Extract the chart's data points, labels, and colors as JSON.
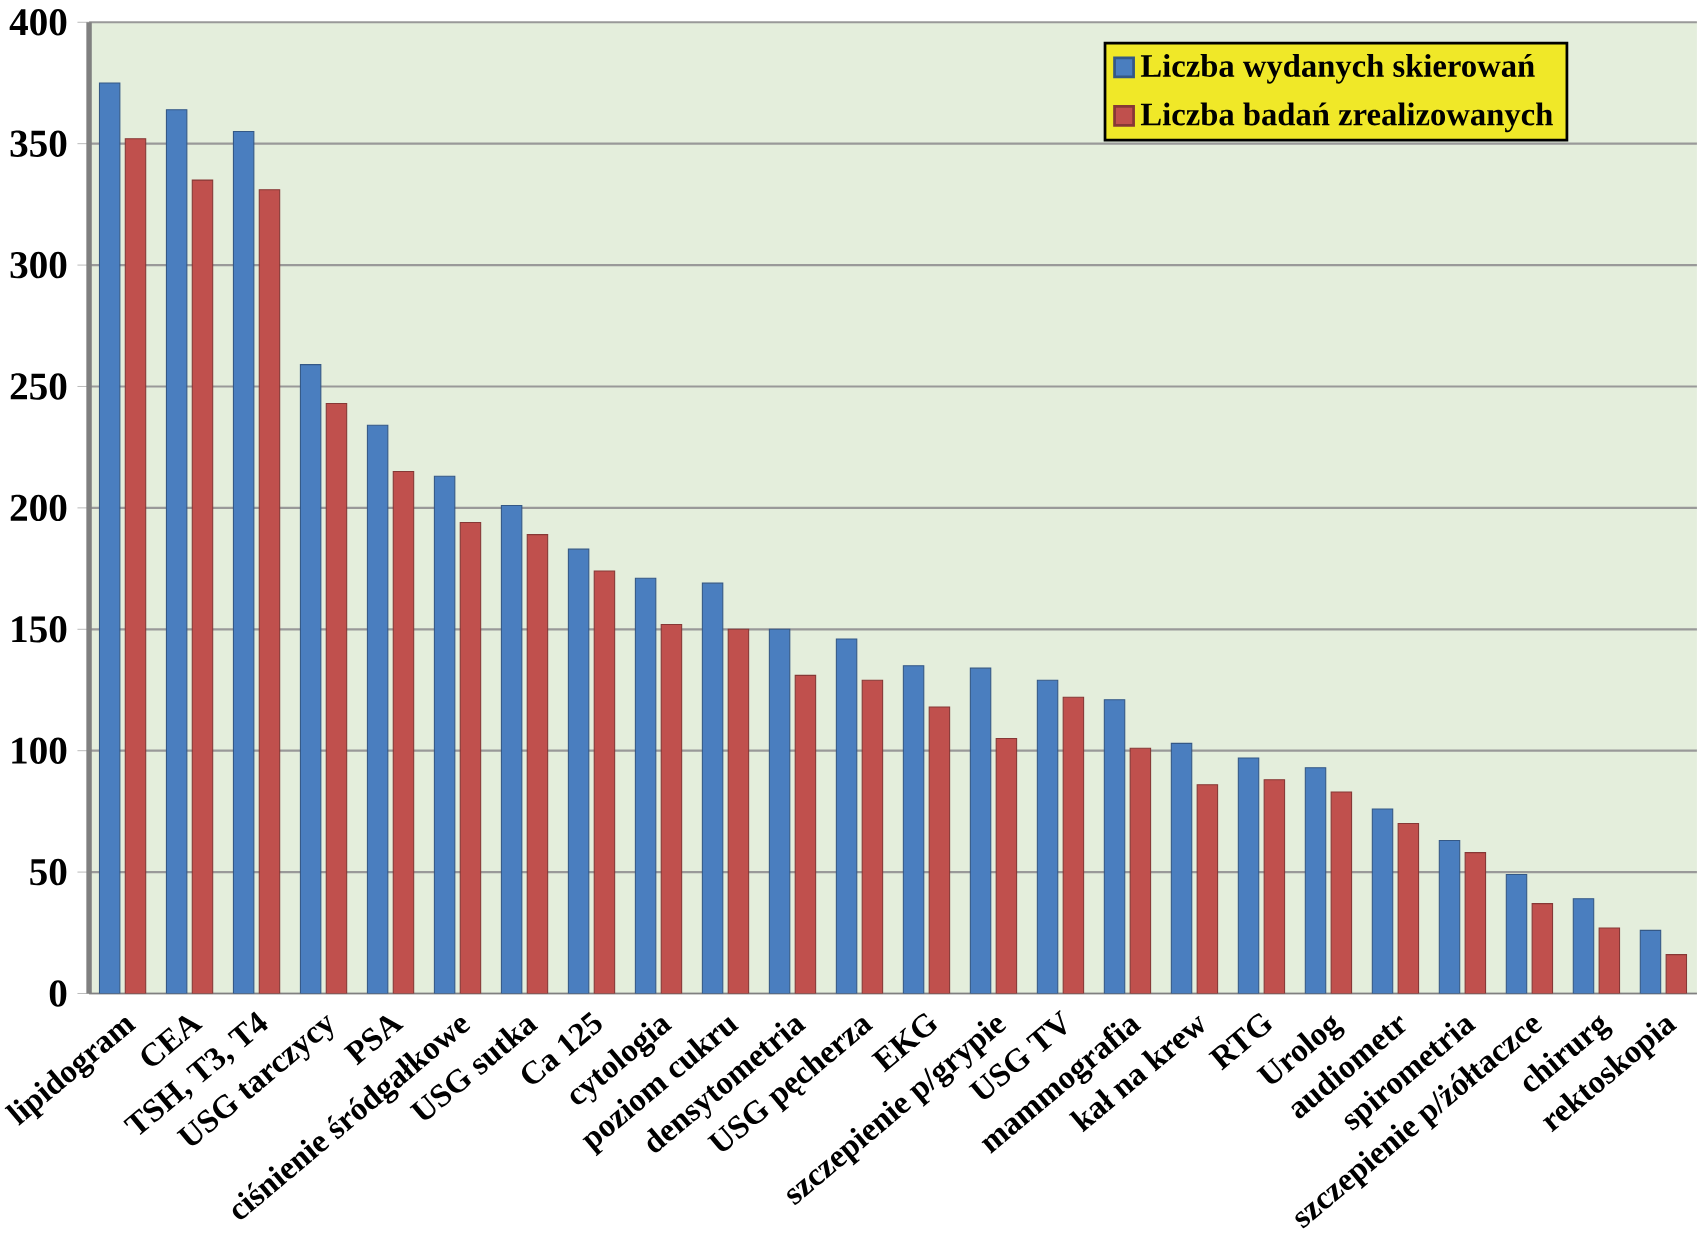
{
  "chart_data": {
    "type": "bar",
    "categories": [
      "lipidogram",
      "CEA",
      "TSH, T3, T4",
      "USG tarczycy",
      "PSA",
      "ciśnienie śródgałkowe",
      "USG sutka",
      "Ca 125",
      "cytologia",
      "poziom cukru",
      "densytometria",
      "USG pęcherza",
      "EKG",
      "szczepienie p/grypie",
      "USG TV",
      "mammografia",
      "kał na krew",
      "RTG",
      "Urolog",
      "audiometr",
      "spirometria",
      "szczepienie p/żółtaczce",
      "chirurg",
      "rektoskopia"
    ],
    "series": [
      {
        "name": "Liczba wydanych skierowań",
        "color": "#4a7ebf",
        "values": [
          375,
          364,
          355,
          259,
          234,
          213,
          201,
          183,
          171,
          169,
          150,
          146,
          135,
          134,
          129,
          121,
          103,
          97,
          93,
          76,
          63,
          49,
          39,
          26
        ]
      },
      {
        "name": "Liczba badań zrealizowanych",
        "color": "#c0504d",
        "values": [
          352,
          335,
          331,
          243,
          215,
          194,
          189,
          174,
          152,
          150,
          131,
          129,
          118,
          105,
          122,
          101,
          86,
          88,
          83,
          70,
          58,
          37,
          27,
          16
        ]
      }
    ],
    "ylim": [
      0,
      400
    ],
    "yticks": [
      0,
      50,
      100,
      150,
      200,
      250,
      300,
      350,
      400
    ],
    "grid": "y",
    "legend": "top right"
  }
}
